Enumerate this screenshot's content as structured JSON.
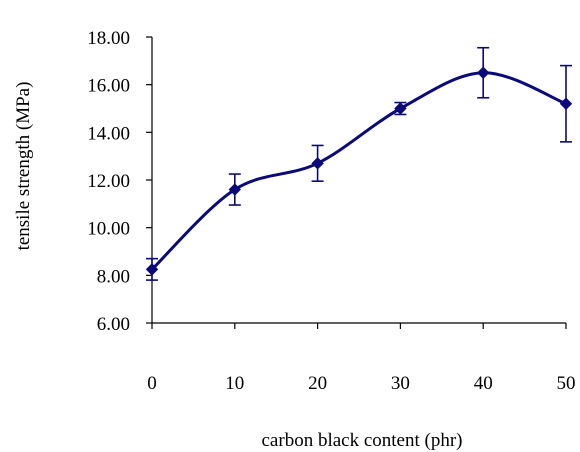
{
  "chart_data": {
    "type": "line",
    "xlabel": "carbon black content (phr)",
    "ylabel": "tensile strength (MPa)",
    "x": [
      0,
      10,
      20,
      30,
      40,
      50
    ],
    "x_ticks": [
      "0",
      "10",
      "20",
      "30",
      "40",
      "50"
    ],
    "y_ticks": [
      "6.00",
      "8.00",
      "10.00",
      "12.00",
      "14.00",
      "16.00",
      "18.00"
    ],
    "xlim": [
      0,
      50
    ],
    "ylim": [
      6,
      18
    ],
    "grid": false,
    "smoothed": true,
    "series": [
      {
        "values": [
          8.25,
          11.6,
          12.7,
          15.0,
          16.5,
          15.2
        ],
        "error": [
          0.45,
          0.65,
          0.75,
          0.25,
          1.05,
          1.6
        ],
        "color": "#0a0a7a",
        "marker": "diamond"
      }
    ]
  }
}
